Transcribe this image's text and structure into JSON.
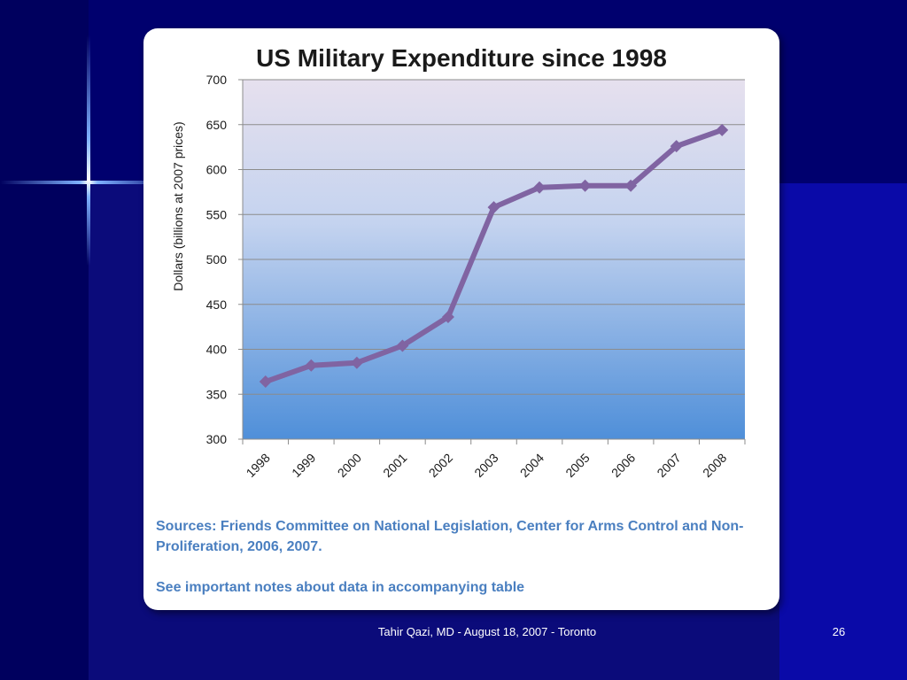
{
  "slide": {
    "footer": "Tahir Qazi, MD - August 18, 2007 - Toronto",
    "page_number": "26",
    "sources_text": "Sources: Friends Committee on National Legislation, Center for Arms Control and Non-Proliferation, 2006, 2007.",
    "notes_text": "See important notes about data in accompanying table"
  },
  "chart_data": {
    "type": "line",
    "title": "US Military Expenditure since 1998",
    "xlabel": "",
    "ylabel": "Dollars (billions at 2007 prices)",
    "categories": [
      "1998",
      "1999",
      "2000",
      "2001",
      "2002",
      "2003",
      "2004",
      "2005",
      "2006",
      "2007",
      "2008"
    ],
    "series": [
      {
        "values": [
          364,
          382,
          385,
          404,
          436,
          558,
          580,
          582,
          582,
          626,
          644
        ]
      }
    ],
    "ylim": [
      300,
      700
    ],
    "yticks": [
      300,
      350,
      400,
      450,
      500,
      550,
      600,
      650,
      700
    ],
    "grid": true,
    "legend": "none",
    "colors": {
      "line": "#8064a2",
      "plot_bg_top": "#e6e0ee",
      "plot_bg_bottom": "#4f8fd9",
      "gridline": "#8c8c8c"
    }
  }
}
